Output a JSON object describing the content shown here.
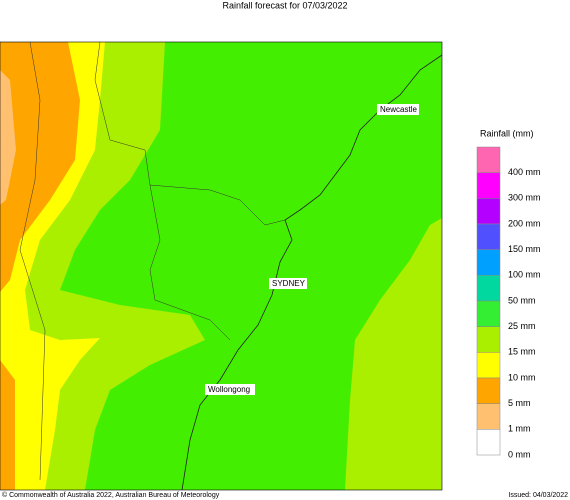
{
  "header": {
    "title": "Rainfall forecast for 07/03/2022"
  },
  "map": {
    "places": [
      {
        "label": "Newcastle"
      },
      {
        "label": "SYDNEY"
      },
      {
        "label": "Wollongong"
      }
    ]
  },
  "legend": {
    "title": "Rainfall (mm)",
    "colors": [
      "#ff66b2",
      "#ff00ff",
      "#b400ff",
      "#5050ff",
      "#00a0ff",
      "#00d8a0",
      "#33ee33",
      "#aaee00",
      "#ffff00",
      "#ffa500",
      "#ffc070",
      "#ffffff"
    ],
    "labels": [
      "400 mm",
      "300 mm",
      "200 mm",
      "150 mm",
      "100 mm",
      "50 mm",
      "25 mm",
      "15 mm",
      "10 mm",
      "5 mm",
      "1 mm",
      "0 mm"
    ]
  },
  "footer": {
    "copyright": "© Commonwealth of Australia 2022, Australian Bureau of Meteorology",
    "issued": "Issued: 04/03/2022"
  }
}
